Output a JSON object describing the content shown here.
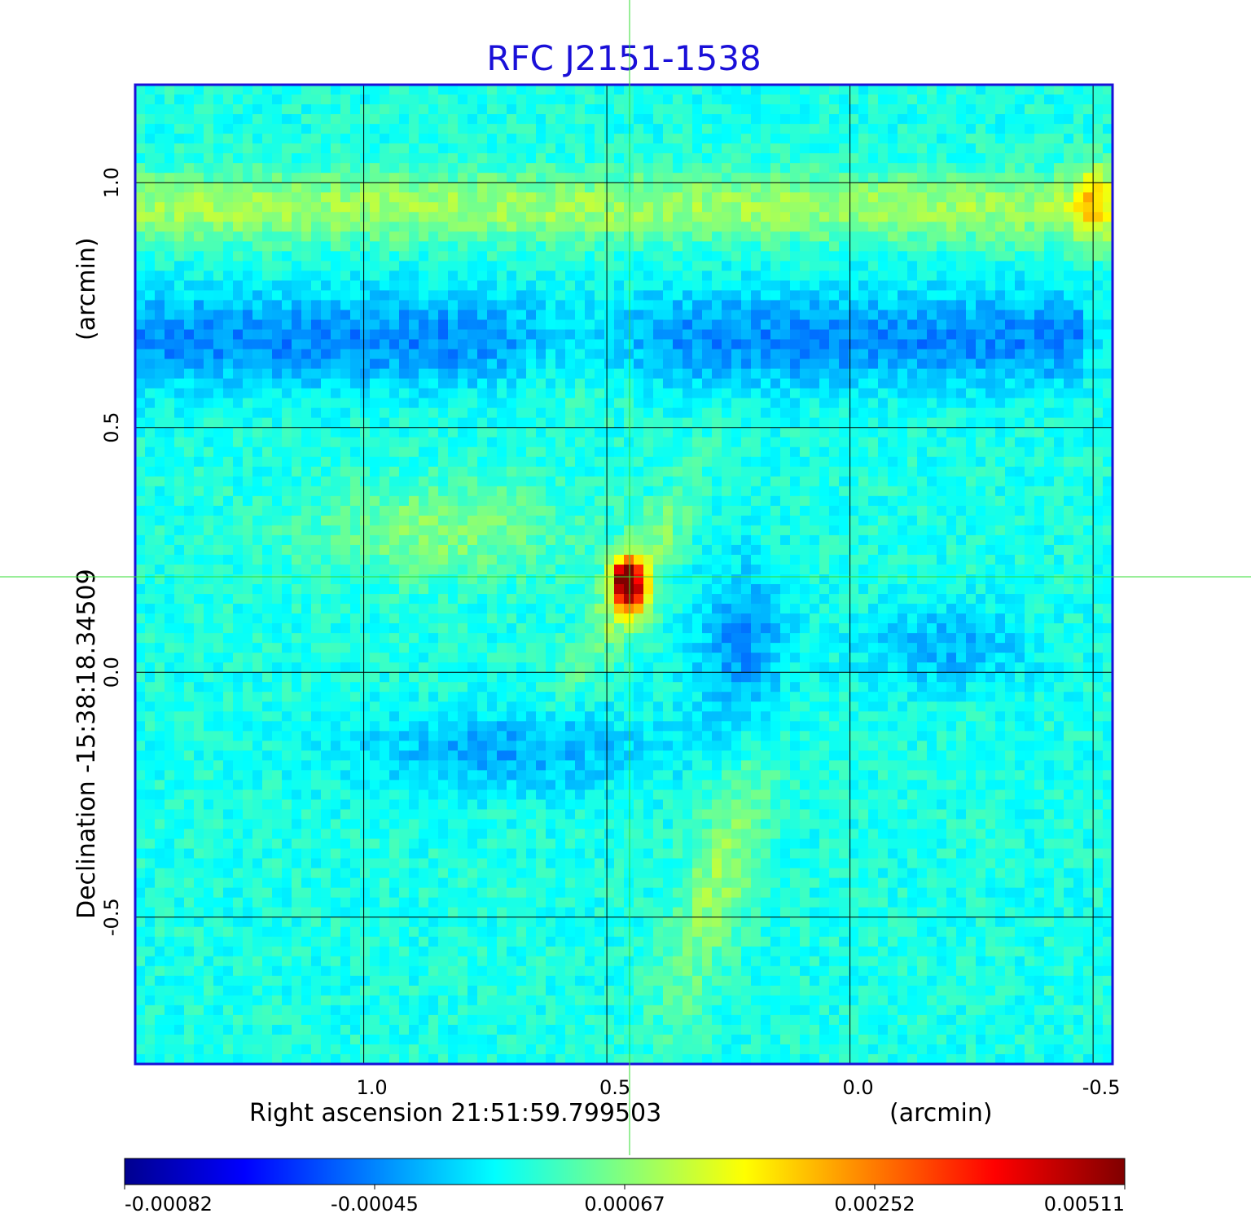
{
  "chart_data": {
    "type": "heatmap",
    "title": "RFC J2151-1538",
    "xlabel": "Right ascension  21:51:59.799503",
    "xunit": "(arcmin)",
    "ylabel": "Declination  -15:38:18.34509",
    "yunit": "(arcmin)",
    "xlim": [
      1.47,
      -0.54
    ],
    "ylim": [
      -0.8,
      1.2
    ],
    "xticks": [
      {
        "value": 1.0,
        "label": "1.0"
      },
      {
        "value": 0.5,
        "label": "0.5"
      },
      {
        "value": 0.0,
        "label": "0.0"
      },
      {
        "value": -0.5,
        "label": "-0.5"
      }
    ],
    "yticks": [
      {
        "value": 1.0,
        "label": "1.0"
      },
      {
        "value": 0.5,
        "label": "0.5"
      },
      {
        "value": 0.0,
        "label": "0.0"
      },
      {
        "value": -0.5,
        "label": "-0.5"
      }
    ],
    "grid": true,
    "crosshair": {
      "x": 0.46,
      "y": 0.195
    },
    "colorbar": {
      "min": -0.00082,
      "max": 0.00511,
      "ticks": [
        "-0.00082",
        "-0.00045",
        "0.00067",
        "0.00252",
        "0.00511"
      ],
      "colormap": "jet"
    },
    "peak": {
      "x": 0.46,
      "y": 0.19,
      "value": 0.00511
    },
    "features": [
      {
        "kind": "positive-band",
        "y": 0.95,
        "x_from": 1.45,
        "x_to": -0.5
      },
      {
        "kind": "negative-band",
        "y": 0.68,
        "x_from": 1.45,
        "x_to": -0.45
      },
      {
        "kind": "positive-ridge",
        "from": [
          0.5,
          0.28
        ],
        "to": [
          0.35,
          0.05
        ]
      },
      {
        "kind": "positive-ridge",
        "from": [
          0.3,
          -0.25
        ],
        "to": [
          0.2,
          -0.6
        ]
      },
      {
        "kind": "negative-patch",
        "x": 0.2,
        "y": 0.07
      },
      {
        "kind": "negative-patch",
        "x": 0.7,
        "y": -0.17
      }
    ]
  },
  "colors": {
    "title": "#1a10d8",
    "frame": "#1a10d8",
    "grid": "#000000",
    "crosshair": "#33dd33"
  }
}
